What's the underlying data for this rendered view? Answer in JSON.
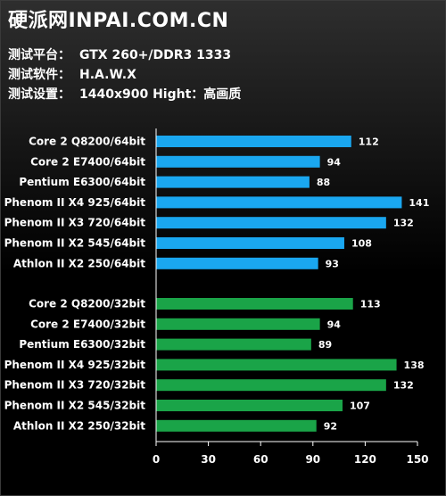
{
  "header": {
    "title": "硬派网INPAI.COM.CN",
    "info": [
      {
        "label": "测试平台：",
        "value": "GTX 260+/DDR3 1333"
      },
      {
        "label": "测试软件：",
        "value": "H.A.W.X"
      },
      {
        "label": "测试设置：",
        "value": "1440x900 Hight：高画质"
      }
    ]
  },
  "colors": {
    "series_64bit": "#1aa7f0",
    "series_32bit": "#1aa448",
    "text": "#ffffff",
    "axis": "#ffffff"
  },
  "chart_data": {
    "type": "bar",
    "orientation": "horizontal",
    "title": "",
    "xlabel": "",
    "ylabel": "",
    "xlim": [
      0,
      150
    ],
    "xticks": [
      0,
      30,
      60,
      90,
      120,
      150
    ],
    "grid": false,
    "legend": "none",
    "series": [
      {
        "color": "#1aa7f0",
        "categories": [
          "Core 2 Q8200/64bit",
          "Core 2 E7400/64bit",
          "Pentium E6300/64bit",
          "Phenom II X4 925/64bit",
          "Phenom II X3 720/64bit",
          "Phenom II X2 545/64bit",
          "Athlon II X2 250/64bit"
        ],
        "values": [
          112,
          94,
          88,
          141,
          132,
          108,
          93
        ]
      },
      {
        "color": "#1aa448",
        "categories": [
          "Core 2 Q8200/32bit",
          "Core 2 E7400/32bit",
          "Pentium E6300/32bit",
          "Phenom II X4 925/32bit",
          "Phenom II X3 720/32bit",
          "Phenom II X2 545/32bit",
          "Athlon II X2 250/32bit"
        ],
        "values": [
          113,
          94,
          89,
          138,
          132,
          107,
          92
        ]
      }
    ]
  }
}
